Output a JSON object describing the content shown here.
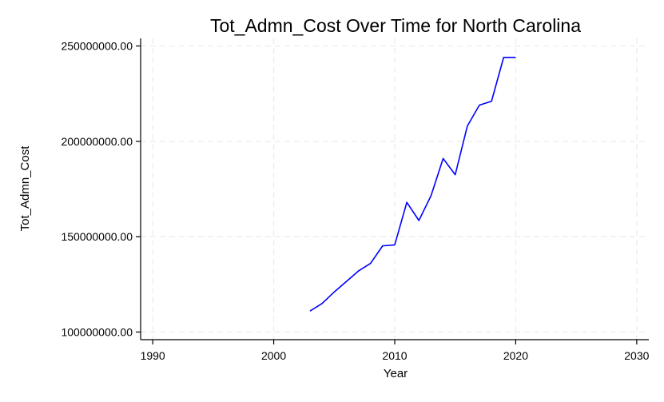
{
  "chart_data": {
    "type": "line",
    "title": "Tot_Admn_Cost Over Time for North Carolina",
    "xlabel": "Year",
    "ylabel": "Tot_Admn_Cost",
    "xlim": [
      1989,
      2031
    ],
    "ylim": [
      96000000,
      254000000
    ],
    "xticks": [
      1990,
      2000,
      2010,
      2020,
      2030
    ],
    "xtick_labels": [
      "1990",
      "2000",
      "2010",
      "2020",
      "2030"
    ],
    "yticks": [
      100000000,
      150000000,
      200000000,
      250000000
    ],
    "ytick_labels": [
      "100000000.00",
      "150000000.00",
      "200000000.00",
      "250000000.00"
    ],
    "grid": true,
    "series": [
      {
        "color": "#0000ff",
        "x": [
          2003,
          2004,
          2005,
          2006,
          2007,
          2008,
          2009,
          2010,
          2011,
          2012,
          2013,
          2014,
          2015,
          2016,
          2017,
          2018,
          2019,
          2020
        ],
        "y": [
          111000000,
          115000000,
          121000000,
          126500000,
          132000000,
          136000000,
          145200000,
          145700000,
          168000000,
          158500000,
          171500000,
          191000000,
          182500000,
          208000000,
          219000000,
          221000000,
          244000000,
          244000000
        ]
      }
    ]
  }
}
